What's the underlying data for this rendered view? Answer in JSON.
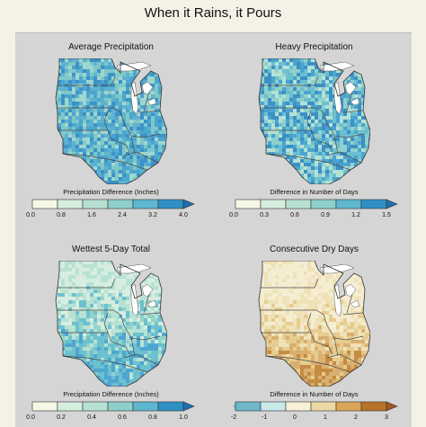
{
  "title": "When it Rains, it Pours",
  "panels": [
    {
      "title": "Average Precipitation",
      "colorbar_label": "Precipitation Difference (Inches)",
      "ticks": [
        "0.0",
        "0.8",
        "1.6",
        "2.4",
        "3.2",
        "4.0"
      ],
      "colors": [
        "#f4f8e4",
        "#d6eedd",
        "#b6e1d3",
        "#8dcfcb",
        "#5eb6cf",
        "#2f90c4"
      ],
      "map_palette": [
        "#7ec8c8",
        "#5fb2cf",
        "#3c92c8",
        "#9fd6cf",
        "#4ba6cf"
      ],
      "arrow": "#1e6fb0",
      "open_tail": true
    },
    {
      "title": "Heavy Precipitation",
      "colorbar_label": "Difference in Number of Days",
      "ticks": [
        "0.0",
        "0.3",
        "0.6",
        "0.9",
        "1.2",
        "1.5"
      ],
      "colors": [
        "#f4f8e4",
        "#d6eedd",
        "#b6e1d3",
        "#8dcfcb",
        "#5eb6cf",
        "#2f90c4"
      ],
      "map_palette": [
        "#8fd0cc",
        "#6bbfcf",
        "#4aa4cf",
        "#b4e1d5",
        "#3c90c6"
      ],
      "arrow": "#1e6fb0",
      "open_tail": true
    },
    {
      "title": "Wettest 5-Day Total",
      "colorbar_label": "Precipitation Difference (Inches)",
      "ticks": [
        "0.0",
        "0.2",
        "0.4",
        "0.6",
        "0.8",
        "1.0"
      ],
      "colors": [
        "#f4f8e4",
        "#d6eedd",
        "#b6e1d3",
        "#8dcfcb",
        "#5eb6cf",
        "#2f90c4"
      ],
      "map_palette": [
        "#b7e2d4",
        "#92d3ca",
        "#6dc0cf",
        "#d6ede0",
        "#4ea6d0"
      ],
      "arrow": "#1e6fb0",
      "open_tail": true
    },
    {
      "title": "Consecutive Dry Days",
      "colorbar_label": "Difference in Number of Days",
      "ticks": [
        "-2",
        "-1",
        "0",
        "1",
        "2",
        "3"
      ],
      "colors": [
        "#6fb7c9",
        "#c8e8ea",
        "#f7f1d8",
        "#ecd9a3",
        "#d9a659",
        "#b8722a"
      ],
      "map_palette": [
        "#efe2b8",
        "#e6cc8e",
        "#d9b070",
        "#f5edd2",
        "#c58c43"
      ],
      "arrow": "#a3581e",
      "open_tail": false
    }
  ]
}
